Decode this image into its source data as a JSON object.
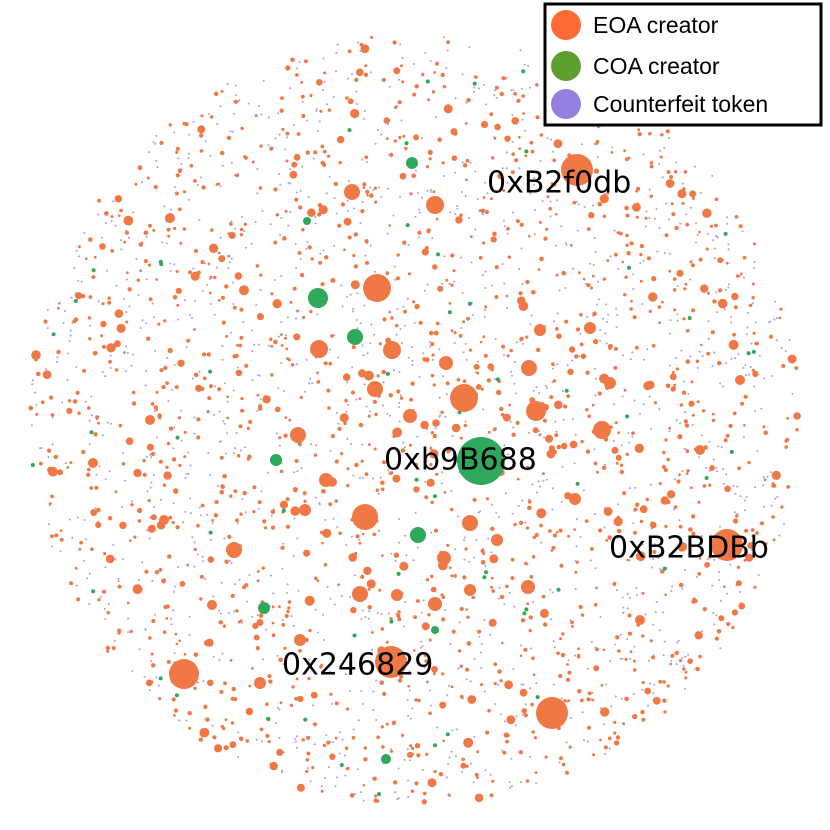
{
  "legend": {
    "items": [
      {
        "label": "EOA creator",
        "color": "#ff6a35"
      },
      {
        "label": "COA creator",
        "color": "#5c9e30"
      },
      {
        "label": "Counterfeit token",
        "color": "#9580e0"
      }
    ]
  },
  "nodes": [
    {
      "label": "0xB2f0db"
    },
    {
      "label": "0xb9B688"
    },
    {
      "label": "0xB2BDBb"
    },
    {
      "label": "0x246829"
    }
  ]
}
